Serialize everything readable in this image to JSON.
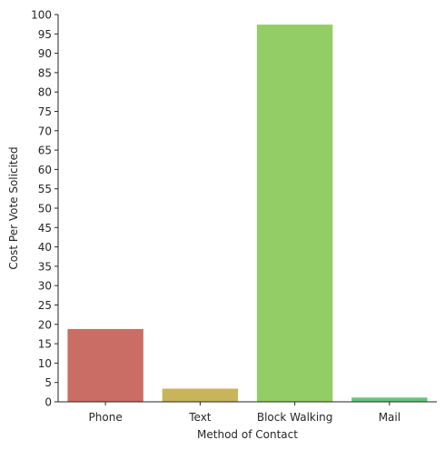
{
  "chart_data": {
    "type": "bar",
    "title": "",
    "xlabel": "Method of Contact",
    "ylabel": "Cost Per Vote Solicited",
    "categories": [
      "Phone",
      "Text",
      "Block Walking",
      "Mail"
    ],
    "values": [
      18.8,
      3.4,
      97.4,
      1.1
    ],
    "colors": [
      "#c96d65",
      "#c8b45c",
      "#93cd65",
      "#67c47a"
    ],
    "ylim": [
      0,
      100
    ],
    "yticks": [
      0,
      5,
      10,
      15,
      20,
      25,
      30,
      35,
      40,
      45,
      50,
      55,
      60,
      65,
      70,
      75,
      80,
      85,
      90,
      95,
      100
    ],
    "grid": false,
    "legend": "none"
  }
}
